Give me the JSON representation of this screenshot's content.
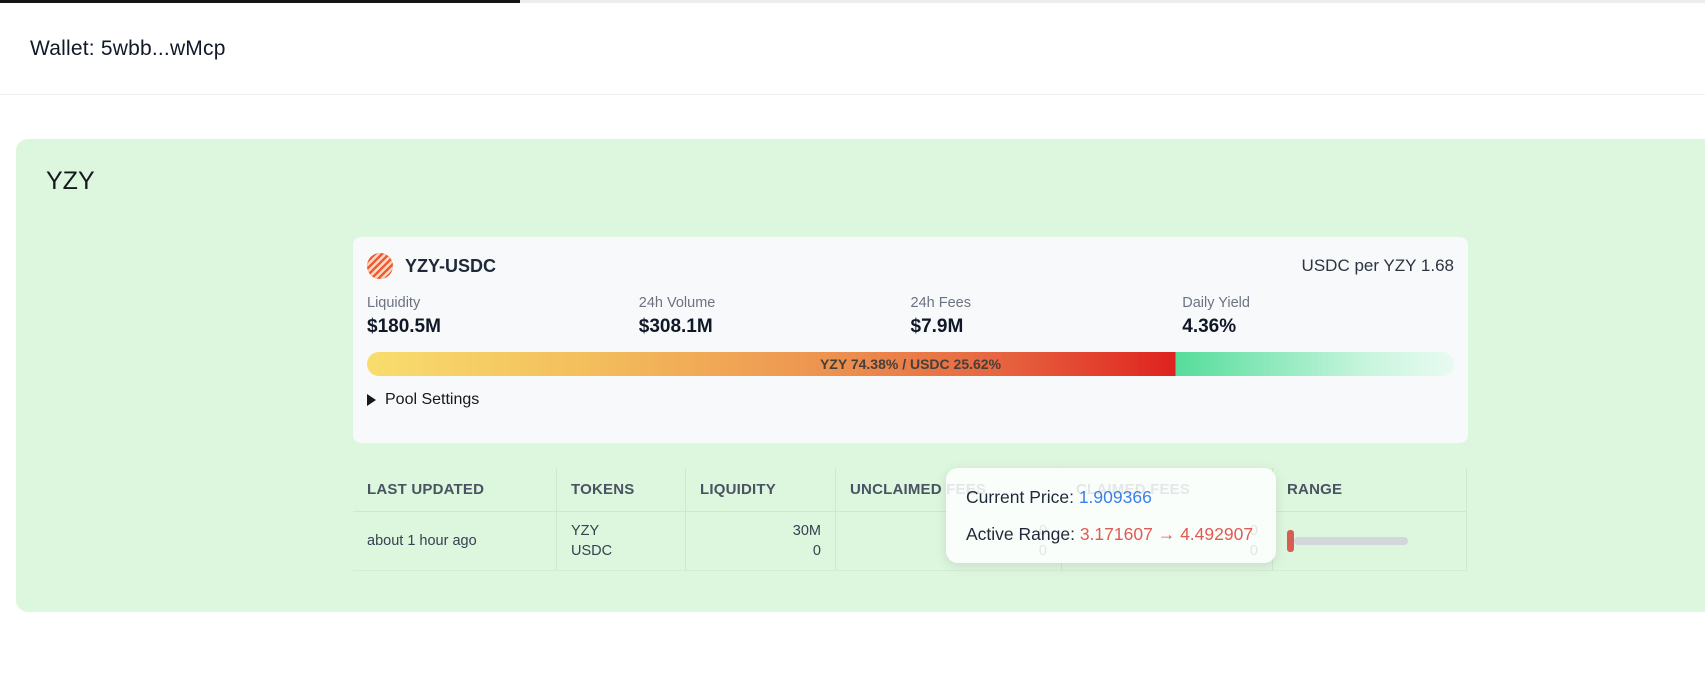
{
  "header": {
    "wallet": "Wallet: 5wbb...wMcp"
  },
  "panel": {
    "title": "YZY",
    "pool_card": {
      "pair": "YZY-USDC",
      "pair_icon": "striped-orange-token-icon",
      "price_note": "USDC per YZY 1.68",
      "stats": [
        {
          "label": "Liquidity",
          "value": "$180.5M"
        },
        {
          "label": "24h Volume",
          "value": "$308.1M"
        },
        {
          "label": "24h Fees",
          "value": "$7.9M"
        },
        {
          "label": "Daily Yield",
          "value": "4.36%"
        }
      ],
      "ratio_bar": {
        "label": "YZY 74.38% / USDC 25.62%",
        "yzy_pct": "74.38",
        "usdc_pct": "25.62"
      },
      "pool_settings_label": "Pool Settings"
    },
    "table": {
      "headers": {
        "last_updated": "LAST UPDATED",
        "tokens": "TOKENS",
        "liquidity": "LIQUIDITY",
        "unclaimed_fees": "UNCLAIMED FEES",
        "claimed_fees": "CLAIMED FEES",
        "range": "RANGE"
      },
      "row": {
        "last_updated": "about 1 hour ago",
        "tokens": {
          "a": "YZY",
          "b": "USDC"
        },
        "liquidity": {
          "a": "30M",
          "b": "0"
        },
        "unclaimed_fees": {
          "a": "0",
          "b": "0"
        },
        "claimed_fees": {
          "a": "0",
          "b": "0"
        }
      }
    }
  },
  "tooltip": {
    "current_price_label": "Current Price:",
    "current_price_value": "1.909366",
    "active_range_label": "Active Range:",
    "range_from": "3.171607",
    "range_arrow": "→",
    "range_to": "4.492907"
  },
  "colors": {
    "panel_green": "#ddf6de",
    "card_bg": "#f8f9fa",
    "price_blue": "#3b7fe8",
    "range_red": "#e25a52",
    "bar_yellow": "#f8dd6e",
    "bar_red": "#de221f",
    "bar_green": "#55dc9a",
    "range_marker_red": "#d75d55",
    "range_track_gray": "#d3d7dc"
  }
}
